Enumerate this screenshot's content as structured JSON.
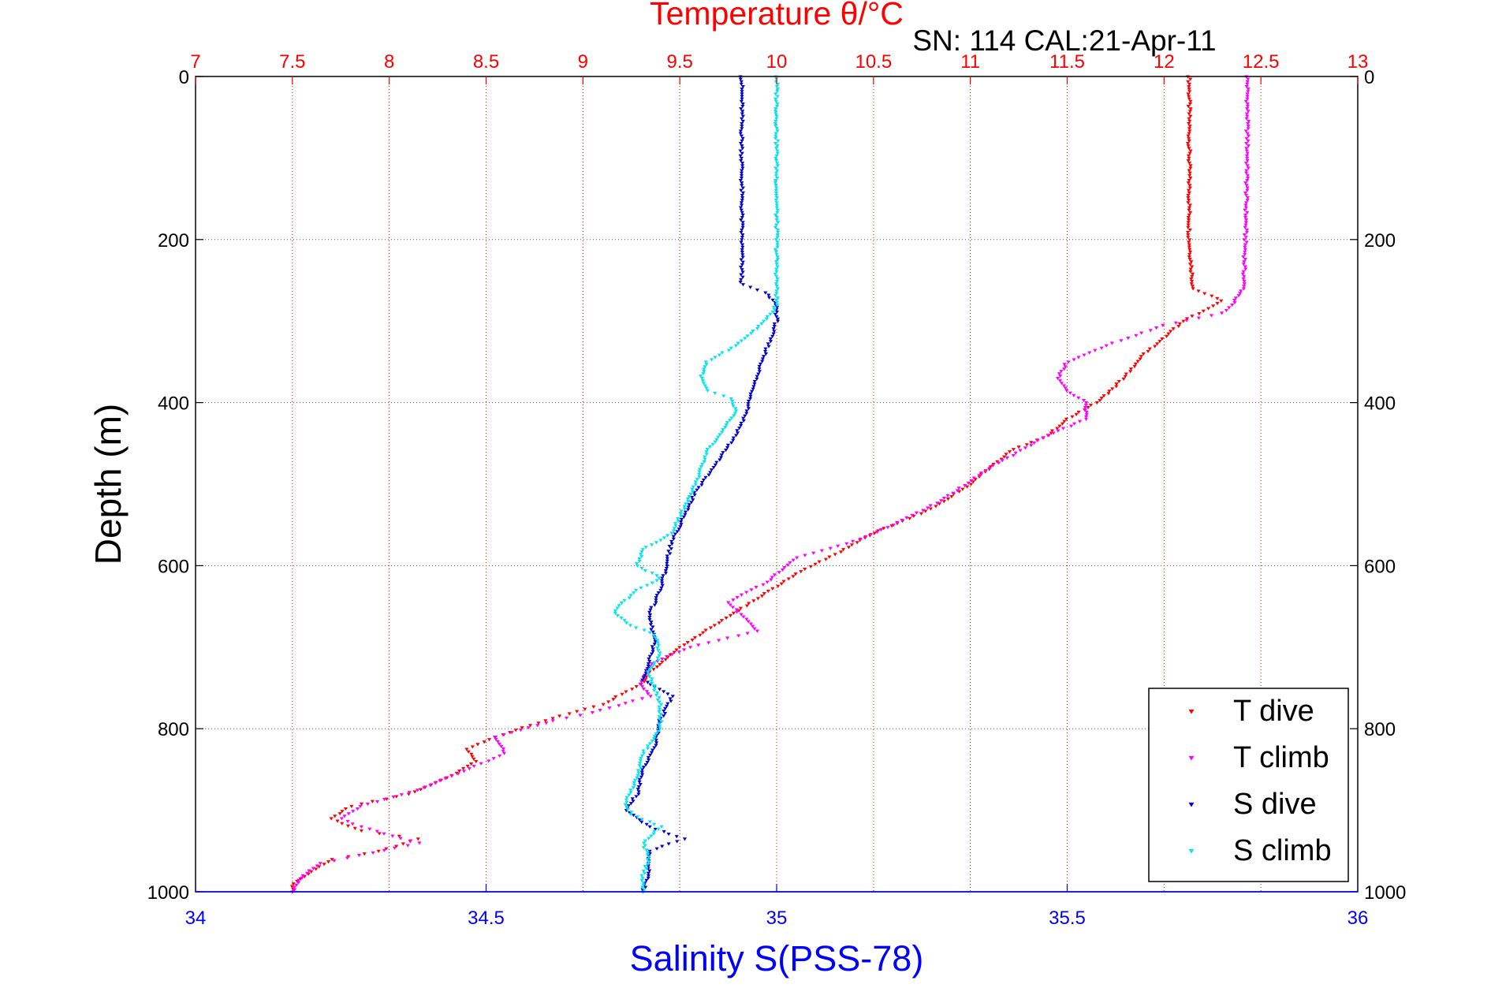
{
  "chart_data": {
    "type": "scatter",
    "title": "Temperature θ/°C",
    "subtitle": "SN: 114  CAL:21-Apr-11",
    "xlabel_bottom": "Salinity S(PSS-78)",
    "xlabel_top": "Temperature θ/°C",
    "ylabel": "Depth (m)",
    "xlim_bottom": [
      34,
      36
    ],
    "xlim_top": [
      7,
      13
    ],
    "ylim": [
      0,
      1000
    ],
    "y_reversed": true,
    "grid": true,
    "legend_position": "bottom-right",
    "bottom_ticks": [
      "34",
      "34.5",
      "35",
      "35.5",
      "36"
    ],
    "top_ticks": [
      "7",
      "7.5",
      "8",
      "8.5",
      "9",
      "9.5",
      "10",
      "10.5",
      "11",
      "11.5",
      "12",
      "12.5",
      "13"
    ],
    "y_ticks": [
      "0",
      "200",
      "400",
      "600",
      "800",
      "1000"
    ],
    "colors": {
      "temperature_axis": "#ff0000",
      "salinity_axis": "#0000ff",
      "t_dive": "#ff0000",
      "t_climb": "#ff00ff",
      "s_dive": "#0000cc",
      "s_climb": "#00e5ee"
    },
    "series": [
      {
        "name": "T dive",
        "axis": "top",
        "color": "#ff0000",
        "points": [
          [
            12.13,
            0
          ],
          [
            12.13,
            100
          ],
          [
            12.13,
            200
          ],
          [
            12.15,
            260
          ],
          [
            12.3,
            275
          ],
          [
            12.1,
            300
          ],
          [
            11.9,
            340
          ],
          [
            11.75,
            380
          ],
          [
            11.65,
            400
          ],
          [
            11.5,
            420
          ],
          [
            11.4,
            440
          ],
          [
            11.2,
            460
          ],
          [
            11.0,
            500
          ],
          [
            10.8,
            530
          ],
          [
            10.5,
            560
          ],
          [
            10.35,
            580
          ],
          [
            10.1,
            610
          ],
          [
            9.9,
            640
          ],
          [
            9.7,
            670
          ],
          [
            9.5,
            700
          ],
          [
            9.35,
            730
          ],
          [
            9.3,
            745
          ],
          [
            9.1,
            770
          ],
          [
            8.8,
            790
          ],
          [
            8.55,
            810
          ],
          [
            8.4,
            825
          ],
          [
            8.45,
            840
          ],
          [
            8.3,
            860
          ],
          [
            8.1,
            880
          ],
          [
            7.8,
            895
          ],
          [
            7.7,
            910
          ],
          [
            7.85,
            925
          ],
          [
            8.15,
            935
          ],
          [
            7.95,
            950
          ],
          [
            7.7,
            960
          ],
          [
            7.6,
            975
          ],
          [
            7.5,
            990
          ],
          [
            7.5,
            1000
          ]
        ]
      },
      {
        "name": "T climb",
        "axis": "top",
        "color": "#ff00ff",
        "points": [
          [
            12.43,
            0
          ],
          [
            12.43,
            100
          ],
          [
            12.42,
            200
          ],
          [
            12.41,
            260
          ],
          [
            12.35,
            280
          ],
          [
            12.3,
            290
          ],
          [
            12.0,
            305
          ],
          [
            11.7,
            330
          ],
          [
            11.5,
            350
          ],
          [
            11.45,
            370
          ],
          [
            11.5,
            385
          ],
          [
            11.6,
            400
          ],
          [
            11.6,
            420
          ],
          [
            11.4,
            440
          ],
          [
            11.1,
            480
          ],
          [
            10.85,
            520
          ],
          [
            10.6,
            550
          ],
          [
            10.4,
            570
          ],
          [
            10.1,
            590
          ],
          [
            9.95,
            620
          ],
          [
            9.75,
            645
          ],
          [
            9.9,
            680
          ],
          [
            9.55,
            700
          ],
          [
            9.35,
            720
          ],
          [
            9.3,
            745
          ],
          [
            9.35,
            760
          ],
          [
            9.05,
            780
          ],
          [
            8.85,
            790
          ],
          [
            8.55,
            810
          ],
          [
            8.6,
            830
          ],
          [
            8.35,
            855
          ],
          [
            8.15,
            875
          ],
          [
            7.85,
            895
          ],
          [
            7.75,
            910
          ],
          [
            7.85,
            920
          ],
          [
            8.15,
            940
          ],
          [
            7.85,
            955
          ],
          [
            7.65,
            965
          ],
          [
            7.55,
            980
          ],
          [
            7.5,
            1000
          ]
        ]
      },
      {
        "name": "S dive",
        "axis": "bottom",
        "color": "#0000cc",
        "points": [
          [
            34.94,
            0
          ],
          [
            34.94,
            100
          ],
          [
            34.94,
            200
          ],
          [
            34.94,
            255
          ],
          [
            34.98,
            265
          ],
          [
            35.0,
            280
          ],
          [
            35.0,
            300
          ],
          [
            34.98,
            340
          ],
          [
            34.96,
            380
          ],
          [
            34.95,
            410
          ],
          [
            34.93,
            440
          ],
          [
            34.9,
            470
          ],
          [
            34.86,
            510
          ],
          [
            34.84,
            540
          ],
          [
            34.82,
            570
          ],
          [
            34.81,
            600
          ],
          [
            34.8,
            630
          ],
          [
            34.78,
            660
          ],
          [
            34.79,
            690
          ],
          [
            34.78,
            720
          ],
          [
            34.77,
            740
          ],
          [
            34.82,
            760
          ],
          [
            34.8,
            790
          ],
          [
            34.79,
            820
          ],
          [
            34.77,
            850
          ],
          [
            34.76,
            880
          ],
          [
            34.74,
            900
          ],
          [
            34.78,
            920
          ],
          [
            34.84,
            935
          ],
          [
            34.78,
            950
          ],
          [
            34.78,
            980
          ],
          [
            34.77,
            1000
          ]
        ]
      },
      {
        "name": "S climb",
        "axis": "bottom",
        "color": "#00e5ee",
        "points": [
          [
            35.0,
            0
          ],
          [
            35.0,
            100
          ],
          [
            35.0,
            200
          ],
          [
            35.0,
            260
          ],
          [
            35.0,
            280
          ],
          [
            34.98,
            300
          ],
          [
            34.93,
            330
          ],
          [
            34.88,
            350
          ],
          [
            34.87,
            370
          ],
          [
            34.88,
            385
          ],
          [
            34.92,
            395
          ],
          [
            34.93,
            410
          ],
          [
            34.91,
            430
          ],
          [
            34.88,
            460
          ],
          [
            34.86,
            500
          ],
          [
            34.84,
            530
          ],
          [
            34.82,
            560
          ],
          [
            34.77,
            580
          ],
          [
            34.76,
            600
          ],
          [
            34.8,
            615
          ],
          [
            34.76,
            630
          ],
          [
            34.72,
            655
          ],
          [
            34.74,
            670
          ],
          [
            34.79,
            685
          ],
          [
            34.8,
            710
          ],
          [
            34.78,
            730
          ],
          [
            34.79,
            750
          ],
          [
            34.8,
            770
          ],
          [
            34.8,
            800
          ],
          [
            34.77,
            830
          ],
          [
            34.76,
            860
          ],
          [
            34.74,
            890
          ],
          [
            34.75,
            905
          ],
          [
            34.8,
            920
          ],
          [
            34.77,
            940
          ],
          [
            34.78,
            960
          ],
          [
            34.77,
            980
          ],
          [
            34.77,
            1000
          ]
        ]
      }
    ]
  }
}
